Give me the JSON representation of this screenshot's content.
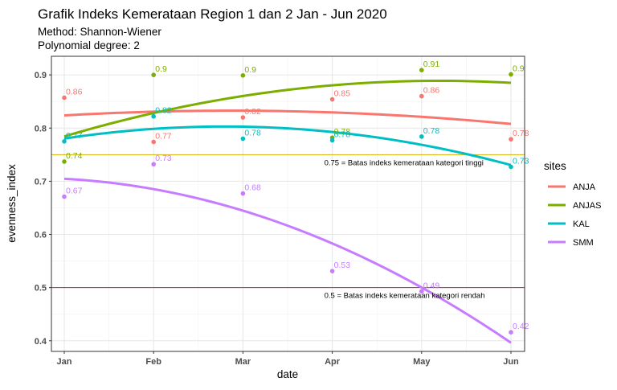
{
  "chart_data": {
    "type": "line",
    "title": "Grafik Indeks Kemerataan Region 1 dan 2 Jan - Jun 2020",
    "subtitle_lines": [
      "Method: Shannon-Wiener",
      "Polynomial degree: 2"
    ],
    "xlabel": "date",
    "ylabel": "evenness_index",
    "x_categories": [
      "Jan",
      "Feb",
      "Mar",
      "Apr",
      "May",
      "Jun"
    ],
    "ylim": [
      0.38,
      0.935
    ],
    "y_ticks": [
      0.4,
      0.5,
      0.6,
      0.7,
      0.8,
      0.9
    ],
    "y_tick_labels": [
      "0.4",
      "0.5",
      "0.6",
      "0.7",
      "0.8",
      "0.9"
    ],
    "grid": true,
    "legend": {
      "title": "sites",
      "position": "right"
    },
    "series": [
      {
        "name": "ANJA",
        "color": "#F8766D",
        "points": [
          {
            "x": 0,
            "y": 0.857,
            "label": "0.86"
          },
          {
            "x": 1,
            "y": 0.774,
            "label": "0.77"
          },
          {
            "x": 2,
            "y": 0.82,
            "label": "0.82"
          },
          {
            "x": 3,
            "y": 0.854,
            "label": "0.85"
          },
          {
            "x": 4,
            "y": 0.86,
            "label": "0.86"
          },
          {
            "x": 5,
            "y": 0.779,
            "label": "0.78"
          }
        ],
        "fit": [
          0.823,
          0.8325,
          0.832,
          0.829,
          0.821,
          0.808
        ]
      },
      {
        "name": "ANJAS",
        "color": "#7CAE00",
        "points": [
          {
            "x": 0,
            "y": 0.737,
            "label": "0.74"
          },
          {
            "x": 1,
            "y": 0.9,
            "label": "0.9"
          },
          {
            "x": 2,
            "y": 0.899,
            "label": "0.9"
          },
          {
            "x": 3,
            "y": 0.782,
            "label": "0.78"
          },
          {
            "x": 4,
            "y": 0.909,
            "label": "0.91"
          },
          {
            "x": 5,
            "y": 0.901,
            "label": "0.9"
          }
        ],
        "fit": [
          0.784,
          0.829,
          0.86,
          0.88,
          0.889,
          0.885
        ]
      },
      {
        "name": "KAL",
        "color": "#00BFC4",
        "points": [
          {
            "x": 0,
            "y": 0.775,
            "label": "0.77"
          },
          {
            "x": 1,
            "y": 0.822,
            "label": "0.82"
          },
          {
            "x": 2,
            "y": 0.78,
            "label": "0.78"
          },
          {
            "x": 3,
            "y": 0.777,
            "label": "0.78"
          },
          {
            "x": 4,
            "y": 0.784,
            "label": "0.78"
          },
          {
            "x": 5,
            "y": 0.727,
            "label": "0.73"
          }
        ],
        "fit": [
          0.781,
          0.798,
          0.801,
          0.793,
          0.771,
          0.729
        ]
      },
      {
        "name": "SMM",
        "color": "#C77CFF",
        "points": [
          {
            "x": 0,
            "y": 0.671,
            "label": "0.67"
          },
          {
            "x": 1,
            "y": 0.732,
            "label": "0.73"
          },
          {
            "x": 2,
            "y": 0.677,
            "label": "0.68"
          },
          {
            "x": 3,
            "y": 0.531,
            "label": "0.53"
          },
          {
            "x": 4,
            "y": 0.493,
            "label": "0.49"
          },
          {
            "x": 5,
            "y": 0.416,
            "label": "0.42"
          }
        ],
        "fit": [
          0.704,
          0.686,
          0.645,
          0.583,
          0.499,
          0.397
        ]
      }
    ],
    "reference_lines": [
      {
        "y": 0.75,
        "color": "#D4B000",
        "label": "0.75 = Batas indeks kemerataan kategori tinggi",
        "label_x": 3.0
      },
      {
        "y": 0.5,
        "color": "#C0202A",
        "label": "0.5 = Batas indeks kemerataan kategori rendah",
        "label_x": 3.0
      }
    ]
  }
}
